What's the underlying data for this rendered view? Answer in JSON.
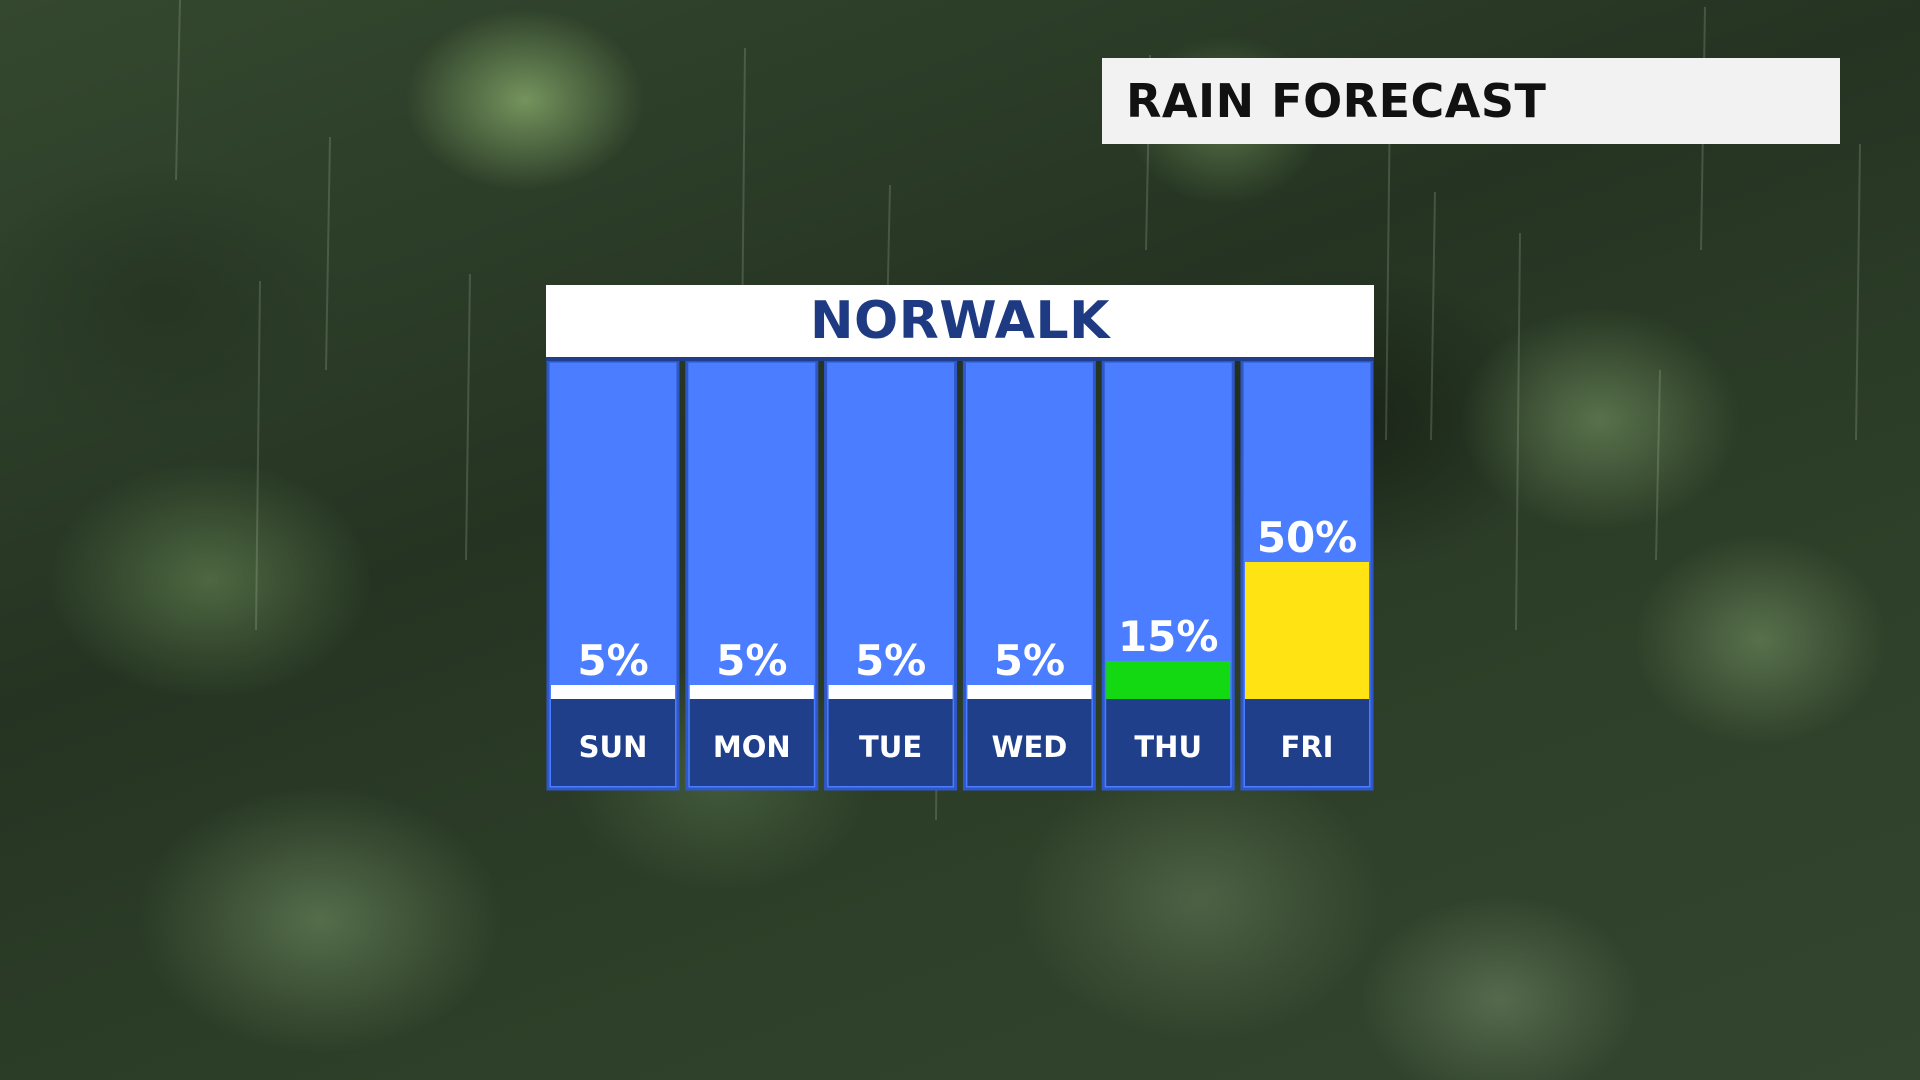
{
  "title_card": {
    "text": "RAIN FORECAST"
  },
  "panel": {
    "location": "NORWALK"
  },
  "colors": {
    "column_bg": "#4a7dff",
    "column_border": "#2f57c8",
    "day_label_bg": "#203f8a",
    "bar_low": "#ffffff",
    "bar_thu": "#12d912",
    "bar_fri": "#ffe313",
    "text_white": "#ffffff"
  },
  "chart_data": {
    "type": "bar",
    "categories": [
      "SUN",
      "MON",
      "TUE",
      "WED",
      "THU",
      "FRI"
    ],
    "values": [
      5,
      5,
      5,
      5,
      15,
      50
    ],
    "value_labels": [
      "5%",
      "5%",
      "5%",
      "5%",
      "15%",
      "50%"
    ],
    "bar_colors": [
      "#ffffff",
      "#ffffff",
      "#ffffff",
      "#ffffff",
      "#12d912",
      "#ffe313"
    ],
    "ylim": [
      0,
      100
    ],
    "unit": "%",
    "grid": false,
    "legend": "none"
  }
}
